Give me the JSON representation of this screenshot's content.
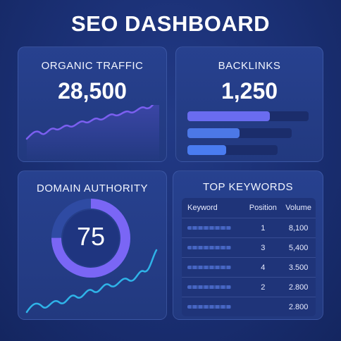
{
  "header": {
    "title": "SEO DASHBOARD"
  },
  "organic_traffic": {
    "label": "ORGANIC TRAFFIC",
    "value": "28,500"
  },
  "backlinks": {
    "label": "BACKLINKS",
    "value": "1,250",
    "bars": [
      {
        "fraction": 0.68,
        "color": "#6a6cf0"
      },
      {
        "fraction": 0.5,
        "color": "#4c78e6"
      },
      {
        "fraction": 0.43,
        "color": "#4a7cf0"
      }
    ]
  },
  "domain_authority": {
    "label": "DOMAIN AUTHORITY",
    "value": "75",
    "ring_fraction": 0.75,
    "ring_color": "#7a66f5"
  },
  "top_keywords": {
    "label": "TOP KEYWORDS",
    "columns": [
      "Keyword",
      "Position",
      "Volume"
    ],
    "rows": [
      {
        "position": "1",
        "volume": "8,100"
      },
      {
        "position": "3",
        "volume": "5,400"
      },
      {
        "position": "4",
        "volume": "3.500"
      },
      {
        "position": "2",
        "volume": "2.800"
      },
      {
        "position": "",
        "volume": "2.800"
      }
    ]
  },
  "colors": {
    "accent_line": "#7b5ff0",
    "teal_line": "#2fb3e8",
    "card_bg": "#253f8c"
  }
}
